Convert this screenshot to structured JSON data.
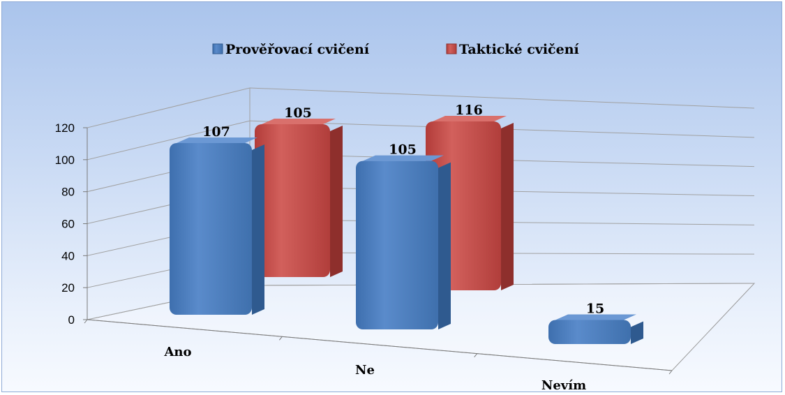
{
  "chart_data": {
    "type": "bar",
    "categories": [
      "Ano",
      "Ne",
      "Nevím"
    ],
    "series": [
      {
        "name": "Prověřovací cvičení",
        "values": [
          107,
          105,
          15
        ],
        "color": "#4f81bd"
      },
      {
        "name": "Taktické cvičení",
        "values": [
          105,
          116,
          0
        ],
        "color": "#c0504d"
      }
    ],
    "y_ticks": [
      "0",
      "20",
      "40",
      "60",
      "80",
      "100",
      "120"
    ],
    "ylim": [
      0,
      120
    ],
    "legend_position": "top",
    "grid": true,
    "three_d": true
  }
}
